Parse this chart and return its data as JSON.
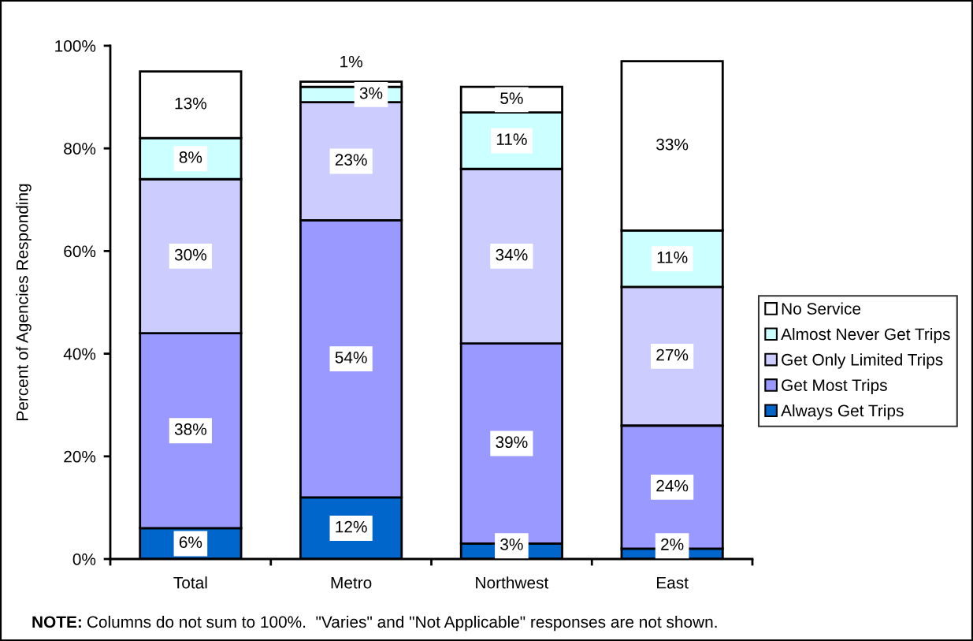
{
  "chart_data": {
    "type": "bar",
    "stacked": true,
    "ylabel": "Percent of Agencies Responding",
    "categories": [
      "Total",
      "Metro",
      "Northwest",
      "East"
    ],
    "series": [
      {
        "name": "Always Get Trips",
        "color": "#0066cc",
        "values": [
          6,
          12,
          3,
          2
        ],
        "value_labels": [
          "6%",
          "12%",
          "3%",
          "2%"
        ]
      },
      {
        "name": "Get Most Trips",
        "color": "#9999ff",
        "values": [
          38,
          54,
          39,
          24
        ],
        "value_labels": [
          "38%",
          "54%",
          "39%",
          "24%"
        ]
      },
      {
        "name": "Get Only Limited Trips",
        "color": "#ccccff",
        "values": [
          30,
          23,
          34,
          27
        ],
        "value_labels": [
          "30%",
          "23%",
          "34%",
          "27%"
        ]
      },
      {
        "name": "Almost Never Get Trips",
        "color": "#ccffff",
        "values": [
          8,
          3,
          11,
          11
        ],
        "value_labels": [
          "8%",
          "3%",
          "11%",
          "11%"
        ]
      },
      {
        "name": "No Service",
        "color": "#ffffff",
        "values": [
          13,
          1,
          5,
          33
        ],
        "value_labels": [
          "13%",
          "1%",
          "5%",
          "33%"
        ]
      }
    ],
    "ylim": [
      0,
      100
    ],
    "yticks": [
      {
        "value": 0,
        "label": "0%"
      },
      {
        "value": 20,
        "label": "20%"
      },
      {
        "value": 40,
        "label": "40%"
      },
      {
        "value": 60,
        "label": "60%"
      },
      {
        "value": 80,
        "label": "80%"
      },
      {
        "value": 100,
        "label": "100%"
      }
    ],
    "grid": false,
    "legend": "right",
    "annotations": [
      "NOTE:",
      "Columns do not sum to 100%.  \"Varies\" and \"Not Applicable\" responses are not shown."
    ]
  }
}
